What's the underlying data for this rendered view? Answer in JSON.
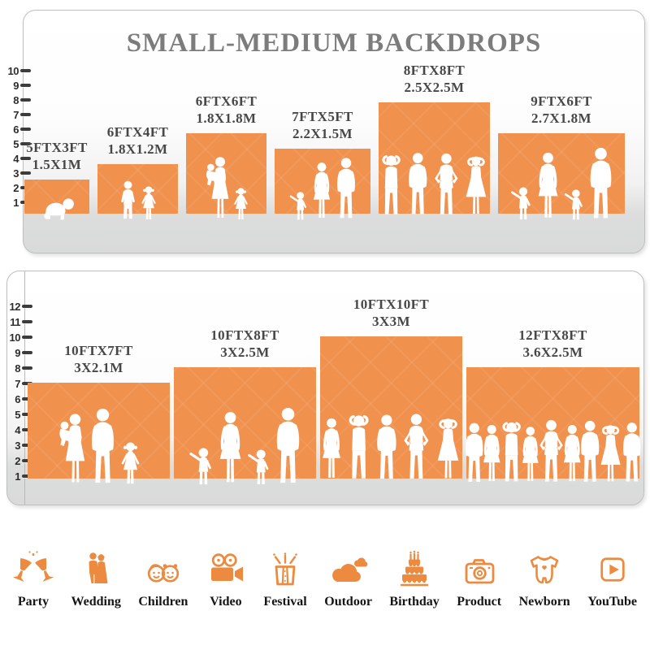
{
  "title": "SMALL-MEDIUM BACKDROPS",
  "colors": {
    "backdrop_orange": "#F0914E",
    "icon_orange": "#EC8B40",
    "title_gray": "#7c7c7c",
    "label_gray": "#474747",
    "ruler_dark": "#2d2d2d",
    "floor_gray": "#d9dada"
  },
  "panels": [
    {
      "id": "small-medium",
      "ruler_ticks": [
        "10",
        "9",
        "8",
        "7",
        "6",
        "5",
        "4",
        "3",
        "2",
        "1"
      ],
      "backdrops": [
        {
          "size_ft": "5FTX3FT",
          "size_m": "1.5X1M",
          "width_ft": 5,
          "height_ft": 3,
          "figures": [
            {
              "type": "baby",
              "h": 30
            }
          ]
        },
        {
          "size_ft": "6FTX4FT",
          "size_m": "1.8X1.2M",
          "width_ft": 6,
          "height_ft": 4,
          "figures": [
            {
              "type": "boy",
              "h": 50
            },
            {
              "type": "girl",
              "h": 43
            }
          ]
        },
        {
          "size_ft": "6FTX6FT",
          "size_m": "1.8X1.8M",
          "width_ft": 6,
          "height_ft": 6,
          "figures": [
            {
              "type": "woman-child",
              "h": 80
            },
            {
              "type": "girl",
              "h": 41
            }
          ]
        },
        {
          "size_ft": "7FTX5FT",
          "size_m": "2.2X1.5M",
          "width_ft": 7,
          "height_ft": 5,
          "figures": [
            {
              "type": "toddler",
              "h": 37
            },
            {
              "type": "woman",
              "h": 73
            },
            {
              "type": "man",
              "h": 79
            }
          ]
        },
        {
          "size_ft": "8FTX8FT",
          "size_m": "2.5X2.5M",
          "width_ft": 8,
          "height_ft": 8,
          "figures": [
            {
              "type": "man-armsup",
              "h": 88
            },
            {
              "type": "man",
              "h": 90
            },
            {
              "type": "man-hips",
              "h": 89
            },
            {
              "type": "woman-armsup",
              "h": 87
            }
          ]
        },
        {
          "size_ft": "9FTX6FT",
          "size_m": "2.7X1.8M",
          "width_ft": 9,
          "height_ft": 6,
          "figures": [
            {
              "type": "toddler",
              "h": 43
            },
            {
              "type": "woman",
              "h": 85
            },
            {
              "type": "toddler",
              "h": 40
            },
            {
              "type": "man",
              "h": 91
            }
          ]
        }
      ]
    },
    {
      "id": "large",
      "ruler_ticks": [
        "12",
        "11",
        "10",
        "9",
        "8",
        "7",
        "6",
        "5",
        "4",
        "3",
        "2",
        "1"
      ],
      "backdrops": [
        {
          "size_ft": "10FTX7FT",
          "size_m": "3X2.1M",
          "width_ft": 10,
          "height_ft": 7,
          "figures": [
            {
              "type": "woman-child",
              "h": 90
            },
            {
              "type": "man",
              "h": 96
            },
            {
              "type": "girl",
              "h": 54
            }
          ]
        },
        {
          "size_ft": "10FTX8FT",
          "size_m": "3X2.5M",
          "width_ft": 10,
          "height_ft": 8,
          "figures": [
            {
              "type": "toddler",
              "h": 48
            },
            {
              "type": "woman",
              "h": 92
            },
            {
              "type": "toddler",
              "h": 46
            },
            {
              "type": "man",
              "h": 97
            }
          ]
        },
        {
          "size_ft": "10FTX10FT",
          "size_m": "3X3M",
          "width_ft": 10,
          "height_ft": 10,
          "figures": [
            {
              "type": "woman",
              "h": 90
            },
            {
              "type": "man-armsup",
              "h": 95
            },
            {
              "type": "man",
              "h": 94
            },
            {
              "type": "man-hips",
              "h": 95
            },
            {
              "type": "woman-armsup",
              "h": 91
            }
          ]
        },
        {
          "size_ft": "12FTX8FT",
          "size_m": "3.6X2.5M",
          "width_ft": 12,
          "height_ft": 8,
          "figures": [
            {
              "type": "man",
              "h": 80
            },
            {
              "type": "woman",
              "h": 78
            },
            {
              "type": "man-armsup",
              "h": 83
            },
            {
              "type": "woman",
              "h": 76
            },
            {
              "type": "man-hips",
              "h": 84
            },
            {
              "type": "woman",
              "h": 78
            },
            {
              "type": "man",
              "h": 83
            },
            {
              "type": "woman-armsup",
              "h": 79
            },
            {
              "type": "man",
              "h": 81
            }
          ]
        }
      ]
    }
  ],
  "categories": [
    {
      "label": "Party",
      "icon": "party-icon"
    },
    {
      "label": "Wedding",
      "icon": "wedding-icon"
    },
    {
      "label": "Children",
      "icon": "children-icon"
    },
    {
      "label": "Video",
      "icon": "video-icon"
    },
    {
      "label": "Festival",
      "icon": "festival-icon"
    },
    {
      "label": "Outdoor",
      "icon": "outdoor-icon"
    },
    {
      "label": "Birthday",
      "icon": "birthday-icon"
    },
    {
      "label": "Product",
      "icon": "product-icon"
    },
    {
      "label": "Newborn",
      "icon": "newborn-icon"
    },
    {
      "label": "YouTube",
      "icon": "youtube-icon"
    }
  ]
}
